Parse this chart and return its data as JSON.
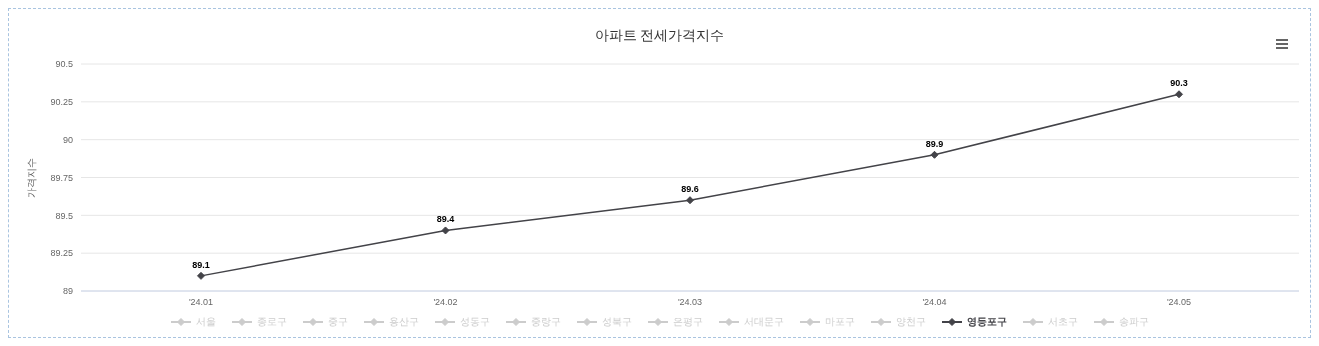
{
  "chart_data": {
    "type": "line",
    "title": "아파트 전세가격지수",
    "ylabel": "가격지수",
    "categories": [
      "'24.01",
      "'24.02",
      "'24.03",
      "'24.04",
      "'24.05"
    ],
    "series": [
      {
        "name": "서울",
        "color": "#cccccc",
        "values": [
          null,
          null,
          null,
          null,
          null
        ]
      },
      {
        "name": "종로구",
        "color": "#cccccc",
        "values": [
          null,
          null,
          null,
          null,
          null
        ]
      },
      {
        "name": "중구",
        "color": "#cccccc",
        "values": [
          null,
          null,
          null,
          null,
          null
        ]
      },
      {
        "name": "용산구",
        "color": "#cccccc",
        "values": [
          null,
          null,
          null,
          null,
          null
        ]
      },
      {
        "name": "성동구",
        "color": "#cccccc",
        "values": [
          null,
          null,
          null,
          null,
          null
        ]
      },
      {
        "name": "중랑구",
        "color": "#cccccc",
        "values": [
          null,
          null,
          null,
          null,
          null
        ]
      },
      {
        "name": "성북구",
        "color": "#cccccc",
        "values": [
          null,
          null,
          null,
          null,
          null
        ]
      },
      {
        "name": "은평구",
        "color": "#cccccc",
        "values": [
          null,
          null,
          null,
          null,
          null
        ]
      },
      {
        "name": "서대문구",
        "color": "#cccccc",
        "values": [
          null,
          null,
          null,
          null,
          null
        ]
      },
      {
        "name": "마포구",
        "color": "#cccccc",
        "values": [
          null,
          null,
          null,
          null,
          null
        ]
      },
      {
        "name": "양천구",
        "color": "#cccccc",
        "values": [
          null,
          null,
          null,
          null,
          null
        ]
      },
      {
        "name": "영등포구",
        "color": "#434348",
        "values": [
          89.1,
          89.4,
          89.6,
          89.9,
          90.3
        ]
      },
      {
        "name": "서초구",
        "color": "#cccccc",
        "values": [
          null,
          null,
          null,
          null,
          null
        ]
      },
      {
        "name": "송파구",
        "color": "#cccccc",
        "values": [
          null,
          null,
          null,
          null,
          null
        ]
      }
    ],
    "ylim": [
      89,
      90.5
    ],
    "yticks": [
      89,
      89.25,
      89.5,
      89.75,
      90,
      90.25,
      90.5
    ],
    "grid": "y",
    "legend": "bottom",
    "marker": "diamond",
    "line_style": "solid",
    "data_labels": true
  }
}
